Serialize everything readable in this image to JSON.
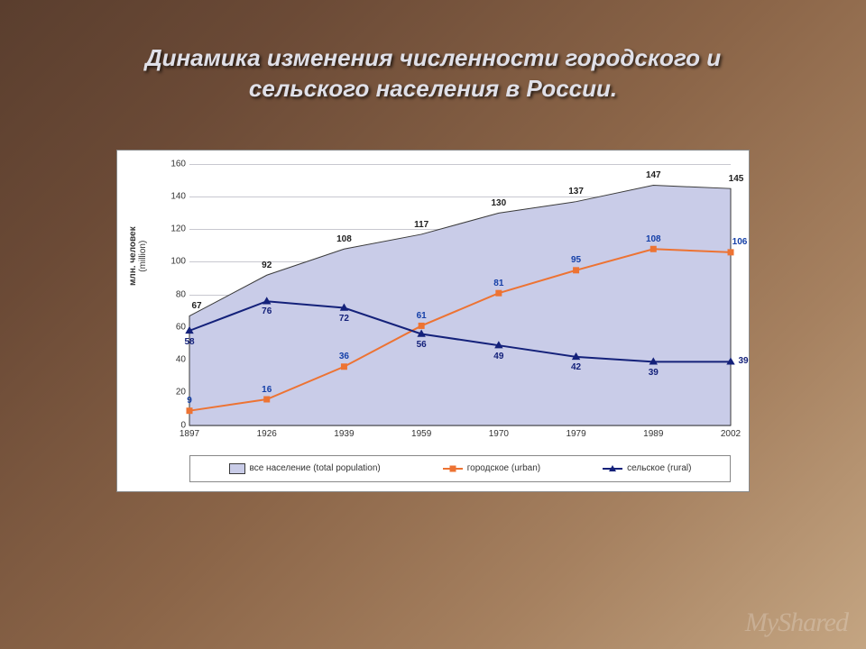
{
  "title_line1": "Динамика изменения численности городского и",
  "title_line2": "сельского населения в России.",
  "yaxis": {
    "label": "млн. человек",
    "sublabel": "(million)"
  },
  "chart": {
    "type": "line-area",
    "background": "#ffffff",
    "grid_color": "#c8c8d0",
    "categories": [
      "1897",
      "1926",
      "1939",
      "1959",
      "1970",
      "1979",
      "1989",
      "2002"
    ],
    "ylim": [
      0,
      160
    ],
    "ytick_step": 20,
    "area_fill": "#c9cce8",
    "area_stroke": "#3a3a3a",
    "series_total": {
      "name": "все население  (total population)",
      "color_fill": "#c9cce8",
      "color_stroke": "#3a3a3a",
      "values": [
        67,
        92,
        108,
        117,
        130,
        137,
        147,
        145
      ],
      "label_color": "#1f1f1f"
    },
    "series_urban": {
      "name": "городское   (urban)",
      "color": "#ed7333",
      "marker": "square",
      "marker_size": 7,
      "line_width": 2,
      "values": [
        9,
        16,
        36,
        61,
        81,
        95,
        108,
        106
      ],
      "label_color": "#1540a8"
    },
    "series_rural": {
      "name": "сельское   (rural)",
      "color": "#14217a",
      "marker": "triangle",
      "marker_size": 8,
      "line_width": 2,
      "values": [
        58,
        76,
        72,
        56,
        49,
        42,
        39,
        39
      ],
      "label_color": "#14217a"
    }
  },
  "legend": {
    "total": "все население  (total population)",
    "urban": "городское   (urban)",
    "rural": "сельское   (rural)"
  },
  "watermark": "MyShared"
}
